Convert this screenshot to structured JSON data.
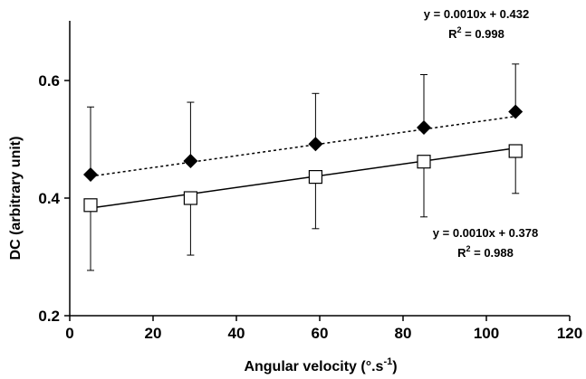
{
  "chart_data": {
    "type": "scatter",
    "title": "",
    "xlabel": "Angular velocity (°.s",
    "xlabel_sup": "-1",
    "xlabel_close": ")",
    "ylabel": "DC (arbitrary unit)",
    "xlim": [
      0,
      120
    ],
    "ylim": [
      0.2,
      0.7
    ],
    "xticks": [
      0,
      20,
      40,
      60,
      80,
      100,
      120
    ],
    "yticks": [
      0.2,
      0.4,
      0.6
    ],
    "xtick_labels": [
      "0",
      "20",
      "40",
      "60",
      "80",
      "100",
      "120"
    ],
    "ytick_labels": [
      "0.2",
      "0.4",
      "0.6"
    ],
    "grid": false,
    "series": [
      {
        "marker": "filled-diamond",
        "color": "#000000",
        "x": [
          5,
          29,
          59,
          85,
          107
        ],
        "y": [
          0.44,
          0.463,
          0.492,
          0.52,
          0.547
        ],
        "err_upper": [
          0.555,
          0.563,
          0.578,
          0.61,
          0.628
        ],
        "err_lower": [],
        "trend": {
          "type": "dotted",
          "slope": 0.001,
          "intercept": 0.432,
          "x_range": [
            5,
            107
          ]
        },
        "equation": "y = 0.0010x + 0.432",
        "r2_prefix": "R",
        "r2_sup": "2",
        "r2_value": " = 0.998"
      },
      {
        "marker": "open-square",
        "color": "#000000",
        "x": [
          5,
          29,
          59,
          85,
          107
        ],
        "y": [
          0.388,
          0.4,
          0.436,
          0.462,
          0.48
        ],
        "err_upper": [],
        "err_lower": [
          0.277,
          0.303,
          0.348,
          0.368,
          0.408
        ],
        "trend": {
          "type": "solid",
          "slope": 0.001,
          "intercept": 0.378,
          "x_range": [
            5,
            107
          ]
        },
        "equation": "y = 0.0010x + 0.378",
        "r2_prefix": "R",
        "r2_sup": "2",
        "r2_value": " = 0.988"
      }
    ]
  }
}
